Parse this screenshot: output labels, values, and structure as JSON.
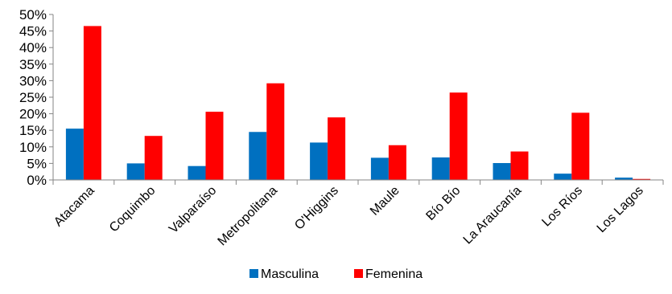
{
  "chart_data": {
    "type": "bar",
    "title": "",
    "xlabel": "",
    "ylabel": "",
    "ylim": [
      0,
      50
    ],
    "ytick_labels": [
      "0%",
      "5%",
      "10%",
      "15%",
      "20%",
      "25%",
      "30%",
      "35%",
      "40%",
      "45%",
      "50%"
    ],
    "categories": [
      "Atacama",
      "Coquimbo",
      "Valparaíso",
      "Metropolitana",
      "O'Higgins",
      "Maule",
      "Bío Bío",
      "La Araucanía",
      "Los Ríos",
      "Los Lagos"
    ],
    "series": [
      {
        "name": "Masculina",
        "color": "#0070C0",
        "values": [
          15.5,
          5.0,
          4.2,
          14.5,
          11.3,
          6.7,
          6.8,
          5.1,
          1.9,
          0.7
        ]
      },
      {
        "name": "Femenina",
        "color": "#FF0000",
        "values": [
          46.5,
          13.3,
          20.6,
          29.2,
          18.9,
          10.5,
          26.4,
          8.6,
          20.3,
          0.3
        ]
      }
    ],
    "grid": false,
    "legend_position": "bottom"
  }
}
